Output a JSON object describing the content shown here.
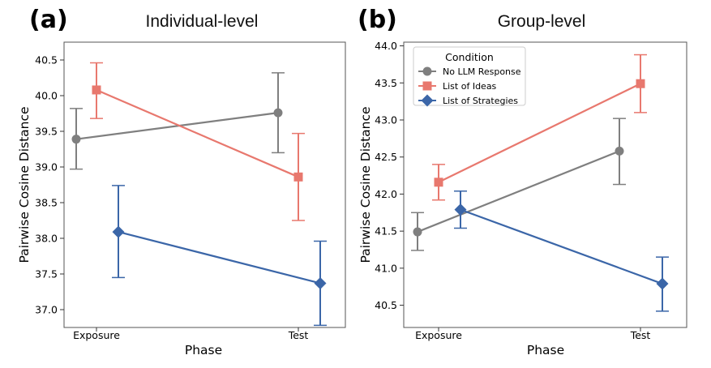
{
  "chart_data": [
    {
      "panel_label": "(a)",
      "type": "line",
      "title": "Individual-level",
      "xlabel": "Phase",
      "ylabel": "Pairwise Cosine Distance",
      "categories": [
        "Exposure",
        "Test"
      ],
      "yticks": [
        "37.0",
        "37.5",
        "38.0",
        "38.5",
        "39.0",
        "39.5",
        "40.0",
        "40.5"
      ],
      "ylim": [
        36.75,
        40.75
      ],
      "grid": false,
      "series": [
        {
          "name": "No LLM Response",
          "marker": "circle",
          "color": "#7f7f7f",
          "values": [
            39.39,
            39.76
          ],
          "ci_low": [
            38.97,
            39.2
          ],
          "ci_high": [
            39.82,
            40.32
          ]
        },
        {
          "name": "List of Ideas",
          "marker": "square",
          "color": "#e8786e",
          "values": [
            40.08,
            38.86
          ],
          "ci_low": [
            39.68,
            38.25
          ],
          "ci_high": [
            40.46,
            39.47
          ]
        },
        {
          "name": "List of Strategies",
          "marker": "diamond",
          "color": "#3b66a8",
          "values": [
            38.09,
            37.37
          ],
          "ci_low": [
            37.45,
            36.78
          ],
          "ci_high": [
            38.74,
            37.96
          ]
        }
      ]
    },
    {
      "panel_label": "(b)",
      "type": "line",
      "title": "Group-level",
      "xlabel": "Phase",
      "ylabel": "Pairwise Cosine Distance",
      "categories": [
        "Exposure",
        "Test"
      ],
      "yticks": [
        "40.5",
        "41.0",
        "41.5",
        "42.0",
        "42.5",
        "43.0",
        "43.5",
        "44.0"
      ],
      "ylim": [
        40.2,
        44.05
      ],
      "grid": false,
      "legend": {
        "title": "Condition",
        "position": "top-left"
      },
      "series": [
        {
          "name": "No LLM Response",
          "marker": "circle",
          "color": "#7f7f7f",
          "values": [
            41.49,
            42.58
          ],
          "ci_low": [
            41.24,
            42.13
          ],
          "ci_high": [
            41.75,
            43.02
          ]
        },
        {
          "name": "List of Ideas",
          "marker": "square",
          "color": "#e8786e",
          "values": [
            42.16,
            43.49
          ],
          "ci_low": [
            41.92,
            43.1
          ],
          "ci_high": [
            42.4,
            43.88
          ]
        },
        {
          "name": "List of Strategies",
          "marker": "diamond",
          "color": "#3b66a8",
          "values": [
            41.79,
            40.79
          ],
          "ci_low": [
            41.54,
            40.42
          ],
          "ci_high": [
            42.04,
            41.15
          ]
        }
      ]
    }
  ]
}
